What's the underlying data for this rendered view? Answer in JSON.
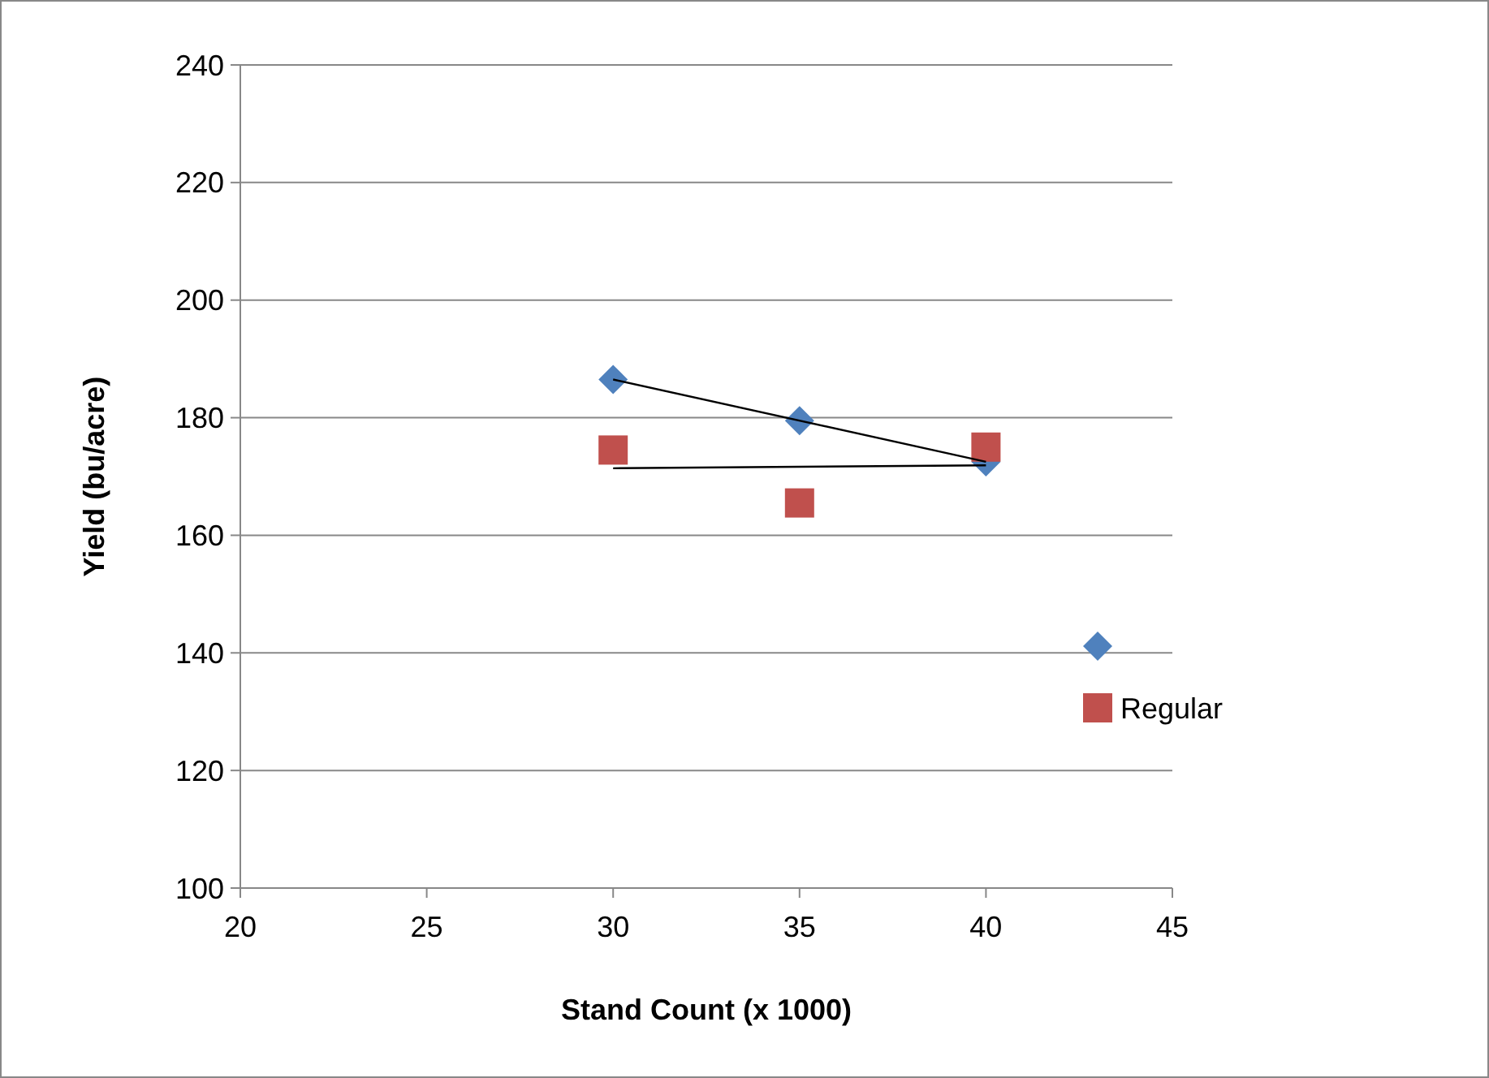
{
  "chart_data": {
    "type": "scatter",
    "xlabel": "Stand Count (x 1000)",
    "ylabel": "Yield (bu/acre)",
    "xlim": [
      20,
      45
    ],
    "xticks": [
      20,
      25,
      30,
      35,
      40,
      45
    ],
    "ylim": [
      100,
      240
    ],
    "yticks": [
      100,
      120,
      140,
      160,
      180,
      200,
      220,
      240
    ],
    "grid": "y",
    "legend": "right",
    "series": [
      {
        "color": "#4f81bd",
        "marker": "diamond",
        "x": [
          30,
          35,
          40
        ],
        "values": [
          186.5,
          179.5,
          172.5
        ]
      },
      {
        "name": "Regular",
        "color": "#c0504d",
        "marker": "square",
        "x": [
          30,
          35,
          40
        ],
        "values": [
          174.5,
          165.5,
          175
        ]
      },
      {
        "type": "line",
        "color": "#000000",
        "marker": "none",
        "x": [
          30,
          40
        ],
        "values": [
          186.5,
          172.5
        ]
      },
      {
        "type": "line",
        "color": "#000000",
        "marker": "none",
        "x": [
          30,
          40
        ],
        "values": [
          171.4,
          171.9
        ]
      }
    ]
  }
}
